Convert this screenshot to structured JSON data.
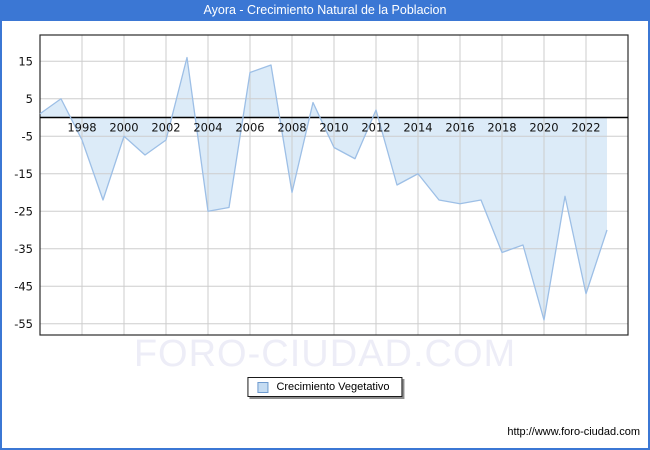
{
  "window": {
    "title": "Ayora - Crecimiento Natural de la Poblacion"
  },
  "legend": {
    "label": "Crecimiento Vegetativo"
  },
  "footer": {
    "watermark": "FORO-CIUDAD.COM",
    "url": "http://www.foro-ciudad.com"
  },
  "colors": {
    "accent": "#3b77d4",
    "line": "#9dbfe6",
    "fill": "#dcebf8",
    "grid": "#cdcdcd",
    "zero_line": "#000000",
    "plot_border": "#2b2b2b",
    "swatch_fill": "#c5dcf2",
    "swatch_border": "#6f9bcf",
    "watermark_color": "#ededf7"
  },
  "chart_data": {
    "type": "area",
    "title": "Ayora - Crecimiento Natural de la Poblacion",
    "xlabel": "",
    "ylabel": "",
    "x": [
      1996,
      1997,
      1998,
      1999,
      2000,
      2001,
      2002,
      2003,
      2004,
      2005,
      2006,
      2007,
      2008,
      2009,
      2010,
      2011,
      2012,
      2013,
      2014,
      2015,
      2016,
      2017,
      2018,
      2019,
      2020,
      2021,
      2022,
      2023
    ],
    "series": [
      {
        "name": "Crecimiento Vegetativo",
        "values": [
          1,
          5,
          -6,
          -22,
          -5,
          -10,
          -6,
          16,
          -25,
          -24,
          12,
          14,
          -20,
          4,
          -8,
          -11,
          2,
          -18,
          -15,
          -22,
          -23,
          -22,
          -36,
          -34,
          -54,
          -21,
          -47,
          -30
        ]
      }
    ],
    "xticks": [
      1998,
      2000,
      2002,
      2004,
      2006,
      2008,
      2010,
      2012,
      2014,
      2016,
      2018,
      2020,
      2022
    ],
    "yticks": [
      15,
      5,
      -5,
      -15,
      -25,
      -35,
      -45,
      -55
    ],
    "xlim": [
      1996,
      2024
    ],
    "ylim": [
      -58,
      22
    ],
    "grid": true,
    "zero_baseline": true,
    "legend_position": "bottom-center"
  }
}
